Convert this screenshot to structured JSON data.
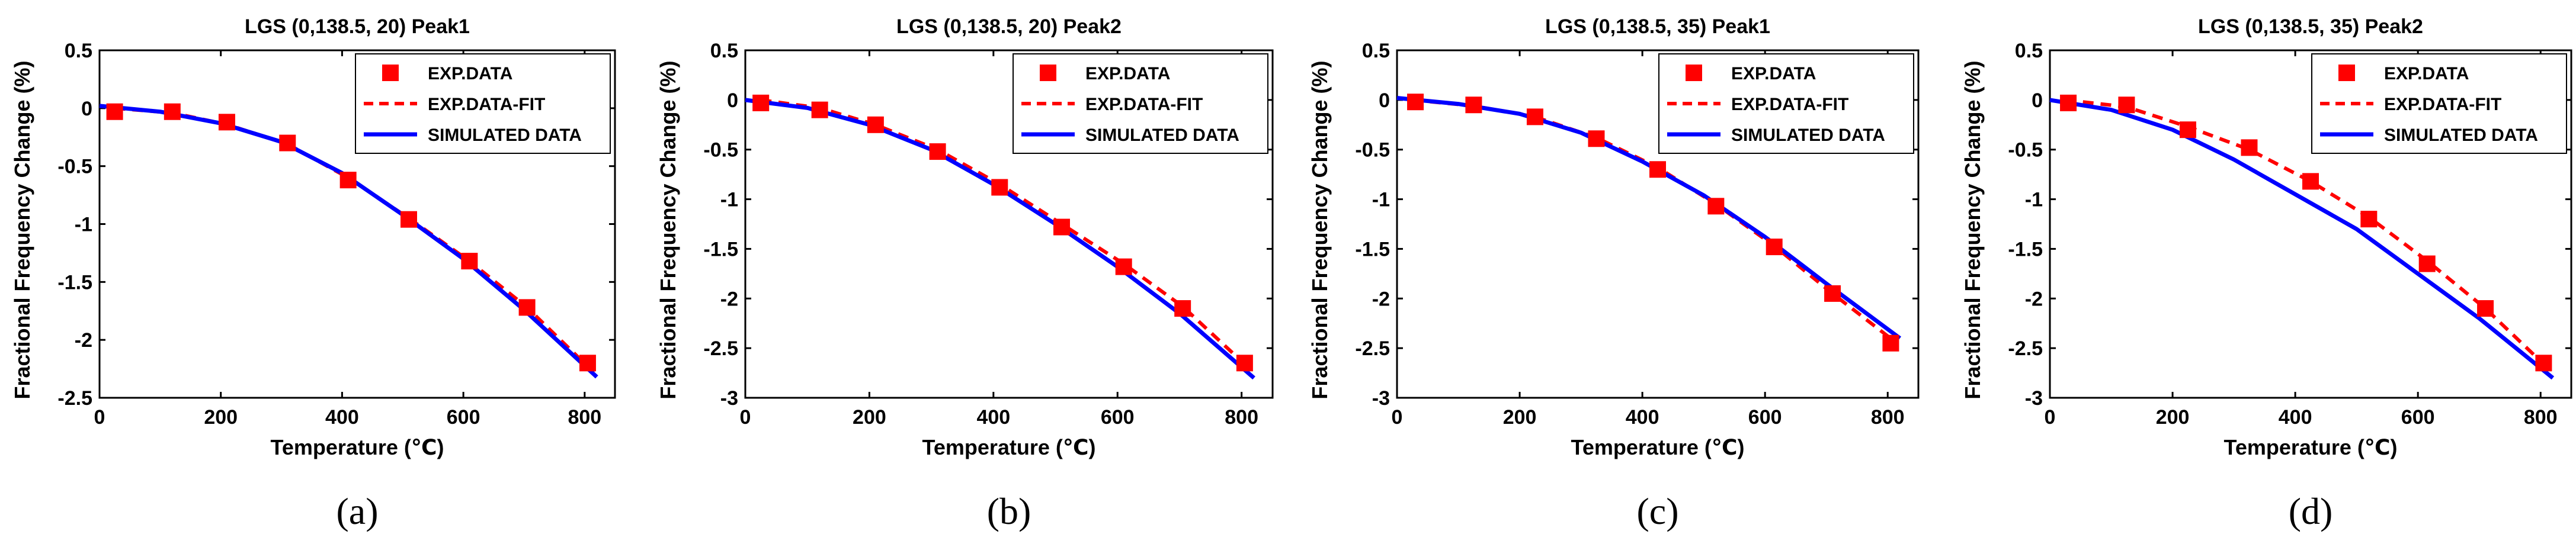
{
  "colors": {
    "exp": "#ff0000",
    "fit": "#ff0000",
    "sim": "#0000ff",
    "axis": "#000000"
  },
  "chart_data": [
    {
      "type": "scatter",
      "title": "LGS (0,138.5, 20) Peak1",
      "xlabel": "Temperature (℃)",
      "ylabel": "Fractional Frequency Change (%)",
      "caption": "(a)",
      "xlim": [
        0,
        850
      ],
      "ylim": [
        -2.5,
        0.5
      ],
      "xticks": [
        0,
        200,
        400,
        600,
        800
      ],
      "yticks": [
        -2.5,
        -2,
        -1.5,
        -1,
        -0.5,
        0,
        0.5
      ],
      "xtick_labels": [
        "0",
        "200",
        "400",
        "600",
        "800"
      ],
      "ytick_labels": [
        "-2.5",
        "-2",
        "-1.5",
        "-1",
        "-0.5",
        "0",
        "0.5"
      ],
      "legend": {
        "position": "top-right",
        "entries": [
          "EXP.DATA",
          "EXP.DATA-FIT",
          "SIMULATED DATA"
        ]
      },
      "series": [
        {
          "name": "EXP.DATA",
          "kind": "marker",
          "x": [
            25,
            120,
            210,
            310,
            410,
            510,
            610,
            705,
            805
          ],
          "y": [
            -0.03,
            -0.03,
            -0.12,
            -0.3,
            -0.62,
            -0.96,
            -1.32,
            -1.72,
            -2.2
          ]
        },
        {
          "name": "EXP.DATA-FIT",
          "kind": "dashed",
          "x": [
            25,
            120,
            210,
            310,
            410,
            510,
            610,
            705,
            815
          ],
          "y": [
            0.0,
            -0.04,
            -0.14,
            -0.31,
            -0.6,
            -0.95,
            -1.32,
            -1.72,
            -2.28
          ]
        },
        {
          "name": "SIMULATED DATA",
          "kind": "solid",
          "x": [
            0,
            100,
            200,
            300,
            400,
            500,
            600,
            700,
            820
          ],
          "y": [
            0.02,
            -0.03,
            -0.13,
            -0.29,
            -0.56,
            -0.92,
            -1.3,
            -1.74,
            -2.32
          ]
        }
      ]
    },
    {
      "type": "scatter",
      "title": "LGS (0,138.5, 20) Peak2",
      "xlabel": "Temperature (℃)",
      "ylabel": "Fractional Frequency Change (%)",
      "caption": "(b)",
      "xlim": [
        0,
        850
      ],
      "ylim": [
        -3,
        0.5
      ],
      "xticks": [
        0,
        200,
        400,
        600,
        800
      ],
      "yticks": [
        -3,
        -2.5,
        -2,
        -1.5,
        -1,
        -0.5,
        0,
        0.5
      ],
      "xtick_labels": [
        "0",
        "200",
        "400",
        "600",
        "800"
      ],
      "ytick_labels": [
        "-3",
        "-2.5",
        "-2",
        "-1.5",
        "-1",
        "-0.5",
        "0",
        "0.5"
      ],
      "legend": {
        "position": "top-right",
        "entries": [
          "EXP.DATA",
          "EXP.DATA-FIT",
          "SIMULATED DATA"
        ]
      },
      "series": [
        {
          "name": "EXP.DATA",
          "kind": "marker",
          "x": [
            25,
            120,
            210,
            310,
            410,
            510,
            610,
            705,
            805
          ],
          "y": [
            -0.03,
            -0.1,
            -0.25,
            -0.52,
            -0.88,
            -1.28,
            -1.68,
            -2.1,
            -2.65
          ]
        },
        {
          "name": "EXP.DATA-FIT",
          "kind": "dashed",
          "x": [
            25,
            120,
            210,
            310,
            410,
            510,
            610,
            705,
            815
          ],
          "y": [
            0.0,
            -0.08,
            -0.25,
            -0.5,
            -0.85,
            -1.25,
            -1.65,
            -2.08,
            -2.72
          ]
        },
        {
          "name": "SIMULATED DATA",
          "kind": "solid",
          "x": [
            0,
            100,
            200,
            300,
            400,
            500,
            600,
            700,
            820
          ],
          "y": [
            0.0,
            -0.08,
            -0.25,
            -0.5,
            -0.85,
            -1.25,
            -1.68,
            -2.15,
            -2.8
          ]
        }
      ]
    },
    {
      "type": "scatter",
      "title": "LGS (0,138.5, 35) Peak1",
      "xlabel": "Temperature (℃)",
      "ylabel": "Fractional Frequency Change (%)",
      "caption": "(c)",
      "xlim": [
        0,
        850
      ],
      "ylim": [
        -3,
        0.5
      ],
      "xticks": [
        0,
        200,
        400,
        600,
        800
      ],
      "yticks": [
        -3,
        -2.5,
        -2,
        -1.5,
        -1,
        -0.5,
        0,
        0.5
      ],
      "xtick_labels": [
        "0",
        "200",
        "400",
        "600",
        "800"
      ],
      "ytick_labels": [
        "-3",
        "-2.5",
        "-2",
        "-1.5",
        "-1",
        "-0.5",
        "0",
        "0.5"
      ],
      "legend": {
        "position": "top-right",
        "entries": [
          "EXP.DATA",
          "EXP.DATA-FIT",
          "SIMULATED DATA"
        ]
      },
      "series": [
        {
          "name": "EXP.DATA",
          "kind": "marker",
          "x": [
            30,
            125,
            225,
            325,
            425,
            520,
            615,
            710,
            805
          ],
          "y": [
            -0.02,
            -0.05,
            -0.17,
            -0.39,
            -0.7,
            -1.07,
            -1.48,
            -1.95,
            -2.45
          ]
        },
        {
          "name": "EXP.DATA-FIT",
          "kind": "dashed",
          "x": [
            25,
            125,
            225,
            325,
            425,
            520,
            615,
            710,
            815
          ],
          "y": [
            0.0,
            -0.06,
            -0.17,
            -0.38,
            -0.68,
            -1.05,
            -1.47,
            -1.95,
            -2.45
          ]
        },
        {
          "name": "SIMULATED DATA",
          "kind": "solid",
          "x": [
            0,
            100,
            200,
            300,
            400,
            500,
            600,
            700,
            820
          ],
          "y": [
            0.02,
            -0.04,
            -0.14,
            -0.33,
            -0.62,
            -0.96,
            -1.38,
            -1.85,
            -2.4
          ]
        }
      ]
    },
    {
      "type": "scatter",
      "title": "LGS (0,138.5, 35) Peak2",
      "xlabel": "Temperature (℃)",
      "ylabel": "Fractional Frequency Change (%)",
      "caption": "(d)",
      "xlim": [
        0,
        850
      ],
      "ylim": [
        -3,
        0.5
      ],
      "xticks": [
        0,
        200,
        400,
        600,
        800
      ],
      "yticks": [
        -3,
        -2.5,
        -2,
        -1.5,
        -1,
        -0.5,
        0,
        0.5
      ],
      "xtick_labels": [
        "0",
        "200",
        "400",
        "600",
        "800"
      ],
      "ytick_labels": [
        "-3",
        "-2.5",
        "-2",
        "-1.5",
        "-1",
        "-0.5",
        "0",
        "0.5"
      ],
      "legend": {
        "position": "top-right",
        "entries": [
          "EXP.DATA",
          "EXP.DATA-FIT",
          "SIMULATED DATA"
        ]
      },
      "series": [
        {
          "name": "EXP.DATA",
          "kind": "marker",
          "x": [
            30,
            125,
            225,
            325,
            425,
            520,
            615,
            710,
            805
          ],
          "y": [
            -0.03,
            -0.05,
            -0.3,
            -0.48,
            -0.82,
            -1.2,
            -1.65,
            -2.1,
            -2.65
          ]
        },
        {
          "name": "EXP.DATA-FIT",
          "kind": "dashed",
          "x": [
            25,
            125,
            225,
            325,
            425,
            520,
            615,
            710,
            815
          ],
          "y": [
            0.0,
            -0.07,
            -0.27,
            -0.5,
            -0.82,
            -1.18,
            -1.62,
            -2.1,
            -2.72
          ]
        },
        {
          "name": "SIMULATED DATA",
          "kind": "solid",
          "x": [
            0,
            100,
            200,
            300,
            400,
            500,
            600,
            700,
            820
          ],
          "y": [
            0.0,
            -0.1,
            -0.3,
            -0.6,
            -0.95,
            -1.3,
            -1.75,
            -2.2,
            -2.8
          ]
        }
      ]
    }
  ]
}
